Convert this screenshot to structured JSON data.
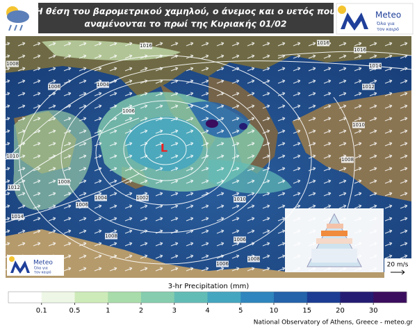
{
  "header": {
    "title_lines": [
      "Η θέση του βαρομετρικού χαμηλού, ο άνεμος και ο υετός που",
      "αναμένονται το πρωί της Κυριακής 01/02"
    ]
  },
  "logo": {
    "name": "Meteo",
    "tagline": [
      "Όλα για",
      "τον καιρό"
    ]
  },
  "map": {
    "low_label": "L",
    "wind_scale": "20 m/s",
    "isobar_labels": [
      1016,
      1016,
      1016,
      1014,
      1008,
      1006,
      1004,
      1012,
      1010,
      1008,
      1006,
      1010,
      1012,
      1014,
      1008,
      1006,
      1004,
      1002,
      1008,
      1010,
      1006,
      1006,
      1008
    ]
  },
  "colorbar": {
    "title": "3-hr Precipitation (mm)",
    "ticks": [
      0.1,
      0.5,
      1,
      2,
      3,
      4,
      5,
      10,
      15,
      20,
      30
    ],
    "colors": [
      "#ffffff",
      "#eef7e6",
      "#cdebb8",
      "#a8dcaa",
      "#85cdae",
      "#62bcb6",
      "#45a6c0",
      "#2f85bd",
      "#2462aa",
      "#1b3c92",
      "#241c73",
      "#3a0d5e"
    ]
  },
  "footer": "National Observatory of Athens, Greece - meteo.gr"
}
